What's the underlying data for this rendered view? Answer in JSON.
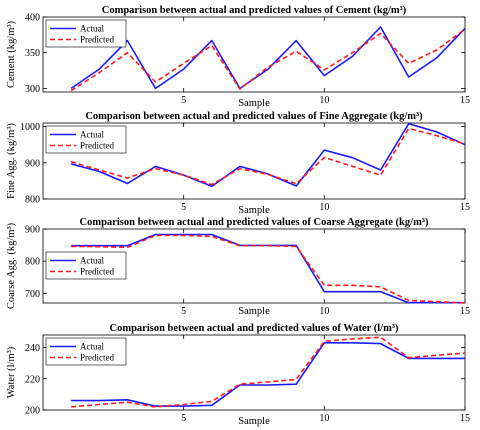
{
  "chart_data": [
    {
      "type": "line",
      "title": "Comparison between actual and predicted values of Cement (kg/m³)",
      "xlabel": "Sample",
      "ylabel": "Cement (kg/m³)",
      "xlim": [
        0,
        15
      ],
      "ylim": [
        295,
        400
      ],
      "xticks": [
        5,
        10,
        15
      ],
      "yticks": [
        300,
        350,
        400
      ],
      "legend_loc": "top-left",
      "x": [
        1,
        2,
        3,
        4,
        5,
        6,
        7,
        8,
        9,
        10,
        11,
        12,
        13,
        14,
        15
      ],
      "series": [
        {
          "name": "Actual",
          "color": "#1a1aff",
          "style": "solid",
          "values": [
            300,
            327,
            367,
            300,
            327,
            367,
            300,
            327,
            367,
            318,
            345,
            386,
            316,
            343,
            384
          ]
        },
        {
          "name": "Predicted",
          "color": "#ff1a1a",
          "style": "dashed",
          "values": [
            297,
            322,
            350,
            309,
            335,
            360,
            299,
            330,
            352,
            326,
            350,
            377,
            335,
            354,
            383
          ]
        }
      ]
    },
    {
      "type": "line",
      "title": "Comparison between actual and predicted values of Fine Aggregate (kg/m³)",
      "xlabel": "Sample",
      "ylabel": "Fine Agg. (kg/m³)",
      "xlim": [
        0,
        15
      ],
      "ylim": [
        800,
        1010
      ],
      "xticks": [
        5,
        10,
        15
      ],
      "yticks": [
        800,
        900,
        1000
      ],
      "legend_loc": "top-left",
      "x": [
        1,
        2,
        3,
        4,
        5,
        6,
        7,
        8,
        9,
        10,
        11,
        12,
        13,
        14,
        15
      ],
      "series": [
        {
          "name": "Actual",
          "color": "#1a1aff",
          "style": "solid",
          "values": [
            897,
            876,
            843,
            890,
            866,
            835,
            890,
            869,
            836,
            935,
            914,
            880,
            1008,
            985,
            950
          ]
        },
        {
          "name": "Predicted",
          "color": "#ff1a1a",
          "style": "dashed",
          "values": [
            903,
            880,
            858,
            884,
            866,
            840,
            884,
            868,
            842,
            915,
            890,
            866,
            995,
            975,
            952
          ]
        }
      ]
    },
    {
      "type": "line",
      "title": "Comparison between actual and predicted values of Coarse Aggregate (kg/m³)",
      "xlabel": "Sample",
      "ylabel": "Coarse Agg. (kg/m³)",
      "xlim": [
        0,
        15
      ],
      "ylim": [
        670,
        900
      ],
      "xticks": [
        5,
        10,
        15
      ],
      "yticks": [
        700,
        800,
        900
      ],
      "legend_loc": "center-left",
      "x": [
        1,
        2,
        3,
        4,
        5,
        6,
        7,
        8,
        9,
        10,
        11,
        12,
        13,
        14,
        15
      ],
      "series": [
        {
          "name": "Actual",
          "color": "#1a1aff",
          "style": "solid",
          "values": [
            848,
            848,
            848,
            883,
            883,
            883,
            849,
            849,
            849,
            705,
            705,
            705,
            671,
            671,
            671
          ]
        },
        {
          "name": "Predicted",
          "color": "#ff1a1a",
          "style": "dashed",
          "values": [
            846,
            845,
            843,
            880,
            880,
            877,
            848,
            848,
            846,
            725,
            725,
            720,
            678,
            674,
            670
          ]
        }
      ]
    },
    {
      "type": "line",
      "title": "Comparison between actual and predicted values of Water (l/m³)",
      "xlabel": "Sample",
      "ylabel": "Water (l/m³)",
      "xlim": [
        0,
        15
      ],
      "ylim": [
        200,
        248
      ],
      "xticks": [
        5,
        10,
        15
      ],
      "yticks": [
        200,
        220,
        240
      ],
      "legend_loc": "top-left",
      "x": [
        1,
        2,
        3,
        4,
        5,
        6,
        7,
        8,
        9,
        10,
        11,
        12,
        13,
        14,
        15
      ],
      "series": [
        {
          "name": "Actual",
          "color": "#1a1aff",
          "style": "solid",
          "values": [
            206,
            206,
            206.5,
            202.5,
            202.5,
            203,
            216,
            216,
            216.5,
            243,
            243,
            242.5,
            233,
            233,
            233
          ]
        },
        {
          "name": "Predicted",
          "color": "#ff1a1a",
          "style": "dashed",
          "values": [
            202,
            203.5,
            205,
            202,
            203.5,
            205.5,
            216.5,
            218,
            219.5,
            244,
            245.5,
            246.5,
            233.5,
            235,
            236.5
          ]
        }
      ]
    }
  ]
}
